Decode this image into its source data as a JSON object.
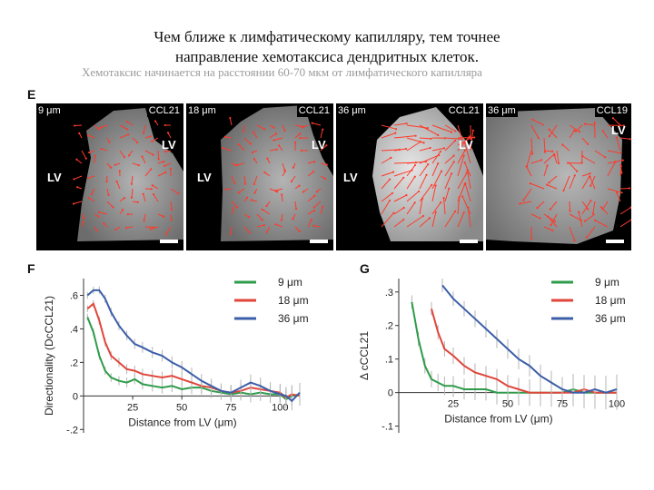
{
  "slide": {
    "title_line1": "Чем ближе к лимфатическому капилляру, тем точнее",
    "title_line2": "направление хемотаксиса дендритных клеток.",
    "subtitle": "Хемотаксис начинается на расстоянии 60-70 мкм от лимфатического капилляра"
  },
  "panel_e": {
    "letter": "E",
    "images": [
      {
        "distance": "9 μm",
        "chemokine": "CCL21",
        "lv_labels": [
          "LV",
          "LV"
        ]
      },
      {
        "distance": "18 μm",
        "chemokine": "CCL21",
        "lv_labels": [
          "LV",
          "LV"
        ]
      },
      {
        "distance": "36 μm",
        "chemokine": "CCL21",
        "lv_labels": [
          "LV",
          "LV"
        ]
      },
      {
        "distance": "36 μm",
        "chemokine": "CCL19",
        "lv_labels": [
          "LV"
        ]
      }
    ]
  },
  "chart_data": [
    {
      "type": "line",
      "panel": "F",
      "xlabel": "Distance from LV (μm)",
      "ylabel": "Directionality (DcCCL21)",
      "xticks": [
        25,
        50,
        75,
        100
      ],
      "yticks": [
        -0.2,
        0,
        0.2,
        0.4,
        0.6
      ],
      "xlim": [
        0,
        110
      ],
      "ylim": [
        -0.22,
        0.7
      ],
      "colors": [
        "#2e9c4a",
        "#e0463a",
        "#3b5ea8"
      ],
      "series": [
        {
          "name": "9 μm",
          "x": [
            2,
            5,
            8,
            11,
            14,
            18,
            22,
            26,
            30,
            35,
            40,
            45,
            50,
            55,
            60,
            65,
            70,
            75,
            80,
            85,
            90,
            95,
            100,
            103,
            106,
            110
          ],
          "y": [
            0.47,
            0.38,
            0.24,
            0.15,
            0.11,
            0.09,
            0.08,
            0.1,
            0.07,
            0.06,
            0.05,
            0.06,
            0.04,
            0.05,
            0.05,
            0.03,
            0.02,
            0.01,
            0.02,
            0.01,
            0.02,
            0.01,
            0.01,
            -0.02,
            0.0,
            0.01
          ]
        },
        {
          "name": "18 μm",
          "x": [
            2,
            5,
            8,
            11,
            14,
            18,
            22,
            26,
            30,
            35,
            40,
            45,
            50,
            55,
            60,
            65,
            70,
            75,
            80,
            85,
            90,
            95,
            100,
            103,
            106,
            110
          ],
          "y": [
            0.52,
            0.55,
            0.45,
            0.32,
            0.24,
            0.2,
            0.16,
            0.15,
            0.13,
            0.12,
            0.11,
            0.12,
            0.1,
            0.08,
            0.06,
            0.05,
            0.03,
            0.02,
            0.03,
            0.05,
            0.04,
            0.03,
            0.02,
            -0.01,
            0.01,
            0.0
          ]
        },
        {
          "name": "36 μm",
          "x": [
            2,
            5,
            8,
            11,
            14,
            18,
            22,
            26,
            30,
            35,
            40,
            45,
            50,
            55,
            60,
            65,
            70,
            75,
            80,
            85,
            90,
            95,
            100,
            103,
            106,
            110
          ],
          "y": [
            0.6,
            0.63,
            0.63,
            0.58,
            0.5,
            0.42,
            0.36,
            0.31,
            0.29,
            0.26,
            0.24,
            0.2,
            0.17,
            0.13,
            0.09,
            0.06,
            0.03,
            0.02,
            0.05,
            0.08,
            0.06,
            0.03,
            0.01,
            0.0,
            -0.03,
            0.02
          ]
        }
      ]
    },
    {
      "type": "line",
      "panel": "G",
      "xlabel": "Distance from LV (μm)",
      "ylabel": "Δ cCCL21",
      "xticks": [
        25,
        50,
        75,
        100
      ],
      "yticks": [
        -0.1,
        0,
        0.1,
        0.2,
        0.3
      ],
      "xlim": [
        0,
        100
      ],
      "ylim": [
        -0.12,
        0.34
      ],
      "colors": [
        "#2e9c4a",
        "#e0463a",
        "#3b5ea8"
      ],
      "series": [
        {
          "name": "9 μm",
          "x": [
            6,
            9,
            12,
            15,
            18,
            21,
            25,
            30,
            35,
            40,
            45,
            50,
            55,
            60,
            65,
            70,
            75,
            80,
            85,
            90,
            95,
            100
          ],
          "y": [
            0.27,
            0.16,
            0.08,
            0.04,
            0.03,
            0.02,
            0.02,
            0.01,
            0.01,
            0.01,
            0.0,
            0.0,
            0.0,
            0.0,
            0.0,
            0.0,
            0.0,
            0.01,
            0.0,
            0.0,
            0.0,
            0.0
          ]
        },
        {
          "name": "18 μm",
          "x": [
            15,
            18,
            21,
            25,
            30,
            35,
            40,
            45,
            50,
            55,
            60,
            65,
            70,
            75,
            80,
            85,
            90,
            95,
            100
          ],
          "y": [
            0.25,
            0.18,
            0.13,
            0.11,
            0.08,
            0.06,
            0.05,
            0.04,
            0.02,
            0.01,
            0.0,
            0.0,
            0.0,
            0.0,
            0.0,
            0.01,
            0.0,
            0.0,
            0.0
          ]
        },
        {
          "name": "36 μm",
          "x": [
            20,
            25,
            30,
            35,
            40,
            45,
            50,
            55,
            60,
            65,
            70,
            75,
            80,
            85,
            90,
            95,
            100
          ],
          "y": [
            0.32,
            0.28,
            0.25,
            0.22,
            0.19,
            0.16,
            0.13,
            0.1,
            0.08,
            0.05,
            0.03,
            0.01,
            0.0,
            0.0,
            0.01,
            0.0,
            0.01
          ]
        }
      ]
    }
  ]
}
